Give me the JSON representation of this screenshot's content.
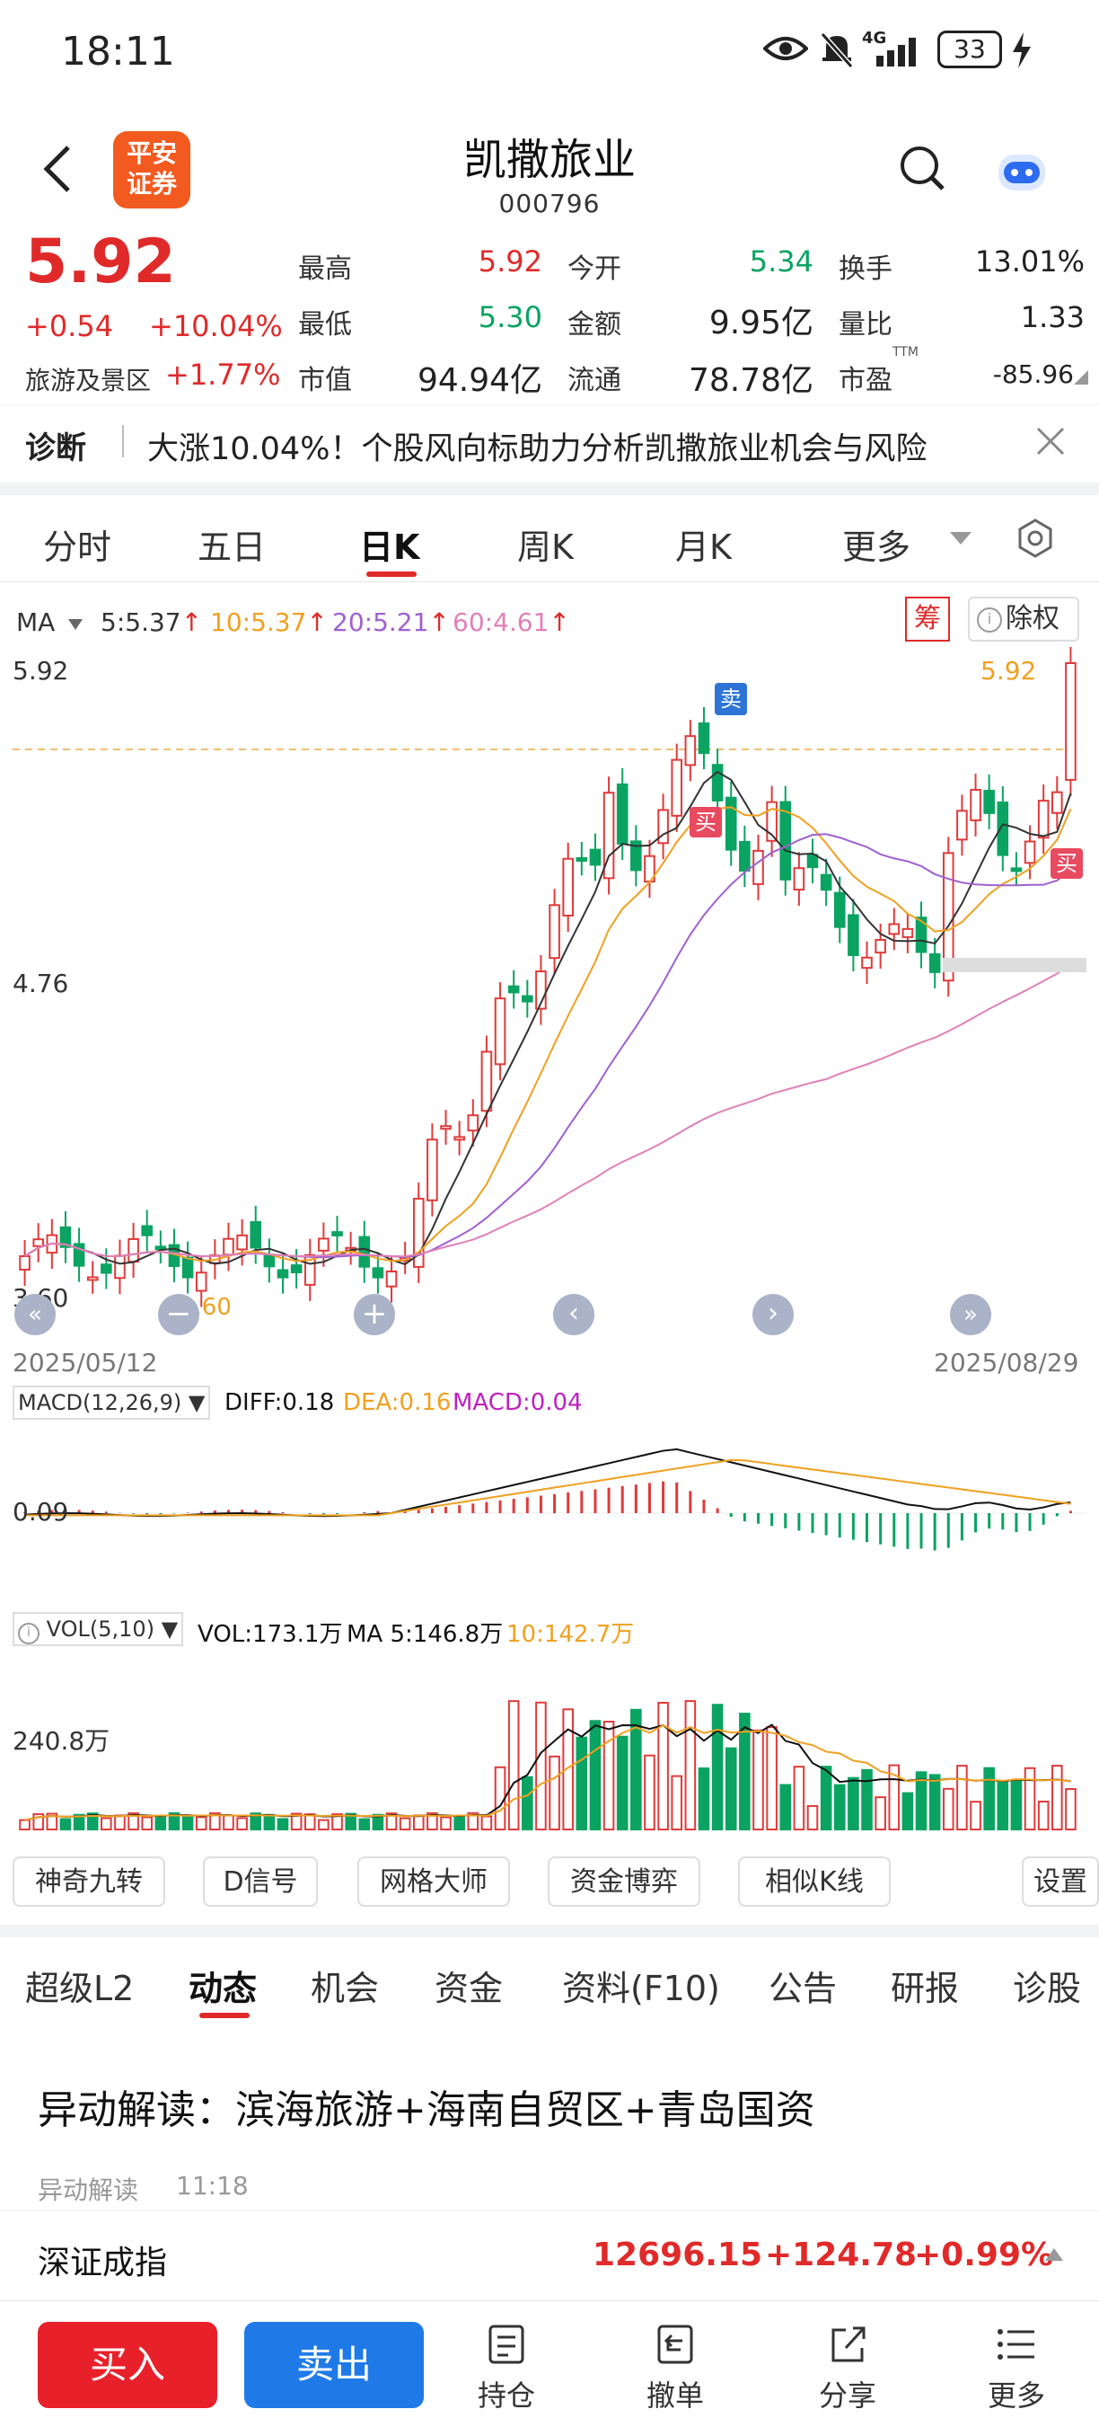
{
  "status": {
    "time": "18:11",
    "battery": "33",
    "network": "4G"
  },
  "header": {
    "name": "凯撒旅业",
    "code": "000796",
    "broker_logo": [
      "平安",
      "证券"
    ]
  },
  "quote": {
    "price": "5.92",
    "change": "+0.54",
    "change_pct": "+10.04%",
    "sector": "旅游及景区",
    "sector_pct": "+1.77%",
    "rows": [
      [
        {
          "label": "最高",
          "value": "5.92",
          "color": "red"
        },
        {
          "label": "今开",
          "value": "5.34",
          "color": "green"
        },
        {
          "label": "换手",
          "value": "13.01%",
          "color": "black"
        }
      ],
      [
        {
          "label": "最低",
          "value": "5.30",
          "color": "green"
        },
        {
          "label": "金额",
          "value": "9.95亿",
          "color": "black"
        },
        {
          "label": "量比",
          "value": "1.33",
          "color": "black"
        }
      ],
      [
        {
          "label": "市值",
          "value": "94.94亿",
          "color": "black"
        },
        {
          "label": "流通",
          "value": "78.78亿",
          "color": "black"
        },
        {
          "label": "市盈",
          "value": "-85.96",
          "color": "black",
          "sup": "TTM"
        }
      ]
    ]
  },
  "diagnosis": {
    "tag": "诊断",
    "text": "大涨10.04%！个股风向标助力分析凯撒旅业机会与风险"
  },
  "chart_tabs": [
    "分时",
    "五日",
    "日K",
    "周K",
    "月K",
    "更多"
  ],
  "chart_tabs_active": "日K",
  "kline": {
    "ma_label": "MA",
    "ma": [
      {
        "text": "5:5.37",
        "color": "#333333"
      },
      {
        "text": "10:5.37",
        "color": "#f0a020"
      },
      {
        "text": "20:5.21",
        "color": "#a060d0"
      },
      {
        "text": "60:4.61",
        "color": "#e080b8"
      }
    ],
    "chou_label": "筹",
    "chuquan_label": "除权",
    "y_top": "5.92",
    "y_mid": "4.76",
    "y_low": "3.60",
    "last_price_tag": "5.92",
    "low_tag": "3.60",
    "date_start": "2025/05/12",
    "date_end": "2025/08/29",
    "sell_tag": "卖",
    "buy_tag": "买"
  },
  "macd": {
    "label": "MACD(12,26,9)",
    "diff": "DIFF:0.18",
    "dea": "DEA:0.16",
    "macd": "MACD:0.04",
    "y": "0.09"
  },
  "vol": {
    "label": "VOL(5,10)",
    "vol": "VOL:173.1万",
    "ma5": "MA 5:146.8万",
    "ma10": "10:142.7万",
    "y": "240.8万"
  },
  "tools": [
    "神奇九转",
    "D信号",
    "网格大师",
    "资金博弈",
    "相似K线",
    "设置"
  ],
  "news_tabs": [
    "超级L2",
    "动态",
    "机会",
    "资金",
    "资料(F10)",
    "公告",
    "研报",
    "诊股"
  ],
  "news_tabs_active": "动态",
  "news": {
    "title": "异动解读：滨海旅游+海南自贸区+青岛国资",
    "source": "异动解读",
    "time": "11:18"
  },
  "index": {
    "name": "深证成指",
    "value": "12696.15",
    "change": "+124.78",
    "pct": "+0.99%"
  },
  "bottom": {
    "buy": "买入",
    "sell": "卖出",
    "items": [
      "持仓",
      "撤单",
      "分享",
      "更多"
    ]
  }
}
